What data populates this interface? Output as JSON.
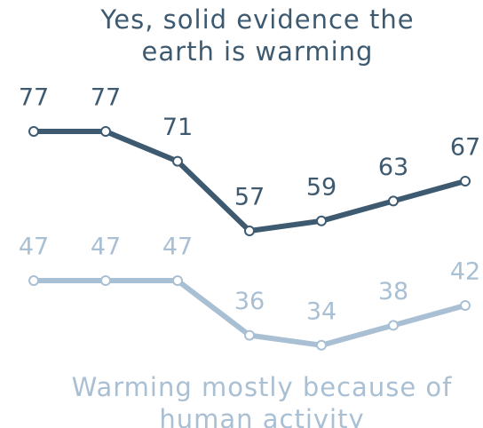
{
  "chart_data": {
    "type": "line",
    "categories": [
      null,
      null,
      null,
      null,
      null,
      null,
      null
    ],
    "series": [
      {
        "name": "Yes, solid evidence the earth is warming",
        "color": "#3e5a70",
        "values": [
          77,
          77,
          71,
          57,
          59,
          63,
          67
        ]
      },
      {
        "name": "Warming mostly because of human activity",
        "color": "#a9bfd3",
        "values": [
          47,
          47,
          47,
          36,
          34,
          38,
          42
        ]
      }
    ],
    "ylim": [
      20,
      100
    ]
  }
}
